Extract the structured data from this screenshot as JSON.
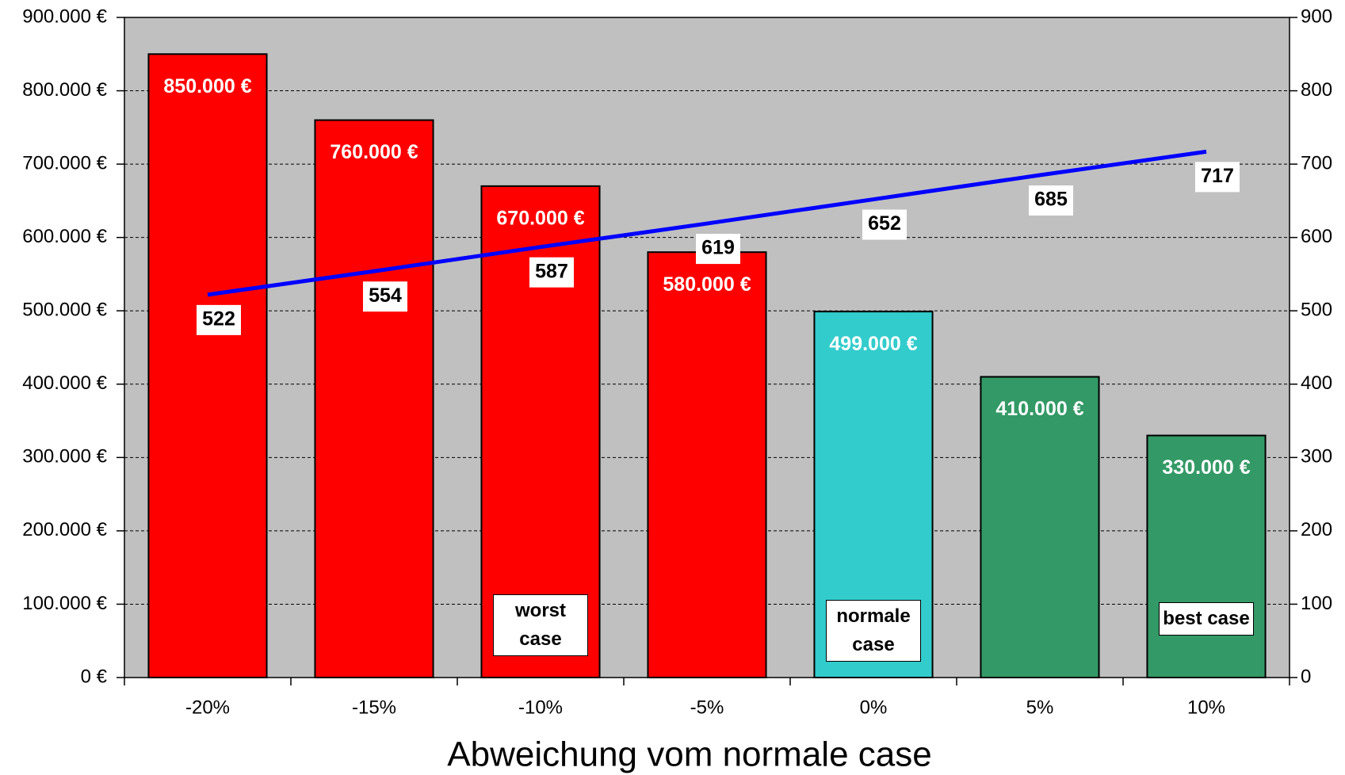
{
  "chart_data": {
    "type": "bar",
    "x_label": "Abweichung vom normale case",
    "categories": [
      "-20%",
      "-15%",
      "-10%",
      "-5%",
      "0%",
      "5%",
      "10%"
    ],
    "series": [
      {
        "type": "bar",
        "colors": [
          "#ff0000",
          "#ff0000",
          "#ff0000",
          "#ff0000",
          "#33cccc",
          "#339966",
          "#339966"
        ],
        "values": [
          850000,
          760000,
          670000,
          580000,
          499000,
          410000,
          330000
        ],
        "value_labels": [
          "850.000 €",
          "760.000 €",
          "670.000 €",
          "580.000 €",
          "499.000 €",
          "410.000 €",
          "330.000 €"
        ]
      },
      {
        "type": "line",
        "axis": "y2",
        "color": "#0000ff",
        "values": [
          522,
          554,
          587,
          619,
          652,
          685,
          717
        ]
      }
    ],
    "ylim": [
      0,
      900000
    ],
    "yticks": [
      {
        "value": 0,
        "label": "0 €"
      },
      {
        "value": 100000,
        "label": "100.000 €"
      },
      {
        "value": 200000,
        "label": "200.000 €"
      },
      {
        "value": 300000,
        "label": "300.000 €"
      },
      {
        "value": 400000,
        "label": "400.000 €"
      },
      {
        "value": 500000,
        "label": "500.000 €"
      },
      {
        "value": 600000,
        "label": "600.000 €"
      },
      {
        "value": 700000,
        "label": "700.000 €"
      },
      {
        "value": 800000,
        "label": "800.000 €"
      },
      {
        "value": 900000,
        "label": "900.000 €"
      }
    ],
    "y2lim": [
      0,
      900
    ],
    "y2ticks": [
      0,
      100,
      200,
      300,
      400,
      500,
      600,
      700,
      800,
      900
    ],
    "grid": true,
    "annotations": [
      "worst case",
      "normale case",
      "best case"
    ]
  }
}
